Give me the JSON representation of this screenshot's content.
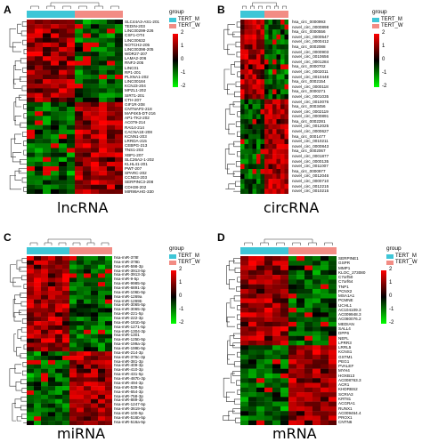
{
  "colors": {
    "tert_m": "#3ec6d7",
    "tert_w": "#f28c84",
    "high": "#ff0000",
    "mid": "#000000",
    "low": "#00ff00"
  },
  "legend": {
    "title": "group",
    "items": [
      "TERT_M",
      "TERT_W"
    ]
  },
  "scale_ticks": [
    "2",
    "1",
    "0",
    "-1",
    "-2"
  ],
  "panels": [
    {
      "letter": "A",
      "caption": "lncRNA",
      "rows": [
        "SLC44A3-AS1-201",
        "TEDIN-203",
        "LINC00299-226",
        "CSF1-OT4",
        "LINC00632",
        "NOTCH2-205",
        "LINC00398-205",
        "WDR27-207",
        "LAMA2-206",
        "RNF2-205",
        "LINC01",
        "RP1-201",
        "PLXNA1-202",
        "LINC00184",
        "KCNJ3-204",
        "MPZL1-202",
        "SIRT1-201",
        "CTH-207",
        "GIF1R-208",
        "CNTNAP2-218",
        "MAP4K5-DT-216",
        "AP1-TK2-202",
        "AC079-214",
        "RAI14-214",
        "CACNA1E-208",
        "KCNN1-203",
        "LRRDA-215",
        "CEBPG-213",
        "TNS1-203",
        "XBP1-207",
        "SLC26A2-1-202",
        "KLHL41-201",
        "PWT-207",
        "SPARC-202",
        "CCND3-203",
        "SERPINC3-208",
        "CDH38-202",
        "MIR99AHG-330"
      ]
    },
    {
      "letter": "B",
      "caption": "circRNA",
      "rows": [
        "hsa_circ_0000993",
        "novel_circ_0000898",
        "hsa_circ_0000556",
        "novel_circ_0000547",
        "novel_circ_0000412",
        "hsa_circ_0002088",
        "novel_circ_0000903",
        "novel_circ_0010656",
        "novel_circ_0001284",
        "hsa_circ_0000702",
        "novel_circ_0002011",
        "novel_circ_0010448",
        "hsa_circ_0002154",
        "novel_circ_0000118",
        "hsa_circ_0000271",
        "novel_circ_0001035",
        "novel_circ_0010076",
        "hsa_circ_0003456",
        "novel_circ_0002119",
        "novel_circ_0000891",
        "hsa_circ_0002281",
        "novel_circ_0012025",
        "novel_circ_0000627",
        "hsa_circ_0001477",
        "novel_circ_0010211",
        "novel_circ_0000843",
        "hsa_circ_0002067",
        "novel_circ_0001877",
        "novel_circ_0000135",
        "novel_circ_0011007",
        "hsa_circ_0000977",
        "novel_circ_0012046",
        "novel_circ_0000710",
        "novel_circ_0012215",
        "novel_circ_0010215"
      ]
    },
    {
      "letter": "C",
      "caption": "miRNA",
      "rows": [
        "hsa-miR-378f",
        "hsa-miR-378b",
        "hsa-miR-598-3p",
        "hsa-miR-3913-5p",
        "hsa-miR-3913-3p",
        "hsa-miR-9-5p",
        "hsa-miR-9985-5p",
        "hsa-miR-6891-3p",
        "hsa-miR-106b-5p",
        "hsa-miR-1269a",
        "hsa-miR-1269b",
        "hsa-miR-3065-5p",
        "hsa-miR-3065-3p",
        "hsa-miR-221-5p",
        "hsa-miR-222-3p",
        "hsa-miR-181b-5p",
        "hsa-miR-1271-5p",
        "hsa-miR-1304-3p",
        "hsa-miR-1301",
        "hsa-miR-125b-5p",
        "hsa-miR-199a-3p",
        "hsa-miR-199b-5p",
        "hsa-miR-214-3p",
        "hsa-miR-376c-3p",
        "hsa-miR-381-3p",
        "hsa-miR-409-3p",
        "hsa-miR-410-3p",
        "hsa-miR-431-5p",
        "hsa-miR-487b-3p",
        "hsa-miR-494-3p",
        "hsa-miR-539-5p",
        "hsa-miR-654-3p",
        "hsa-miR-758-3p",
        "hsa-miR-889-3p",
        "hsa-miR-1247-5p",
        "hsa-miR-3619-5p",
        "hsa-miR-100-5p",
        "hsa-miR-516b-5p",
        "hsa-miR-516a-5p"
      ]
    },
    {
      "letter": "D",
      "caption": "mRNA",
      "rows": [
        "SERPINE1",
        "GSPR",
        "MMP1",
        "KLOC_273080",
        "C7orf50",
        "C7orf64",
        "TNP1",
        "PCNX2",
        "MSA1A1",
        "PCMNE",
        "UCHL1",
        "AC104109.3",
        "AC009948.3",
        "AC080076.2",
        "MEDIAN",
        "SALL4",
        "DPP6",
        "NEFL",
        "LPRR3",
        "LRRL5",
        "KCNS1",
        "GSTM1",
        "PEG1",
        "PVALEF",
        "MYH4",
        "HOXB13",
        "AC008763.3",
        "ACR1",
        "KHDRBS2",
        "SCRIA3",
        "KRT81",
        "ACGRA1",
        "RUNX1",
        "AC009464.4",
        "PROX1",
        "CNTN6"
      ]
    }
  ]
}
